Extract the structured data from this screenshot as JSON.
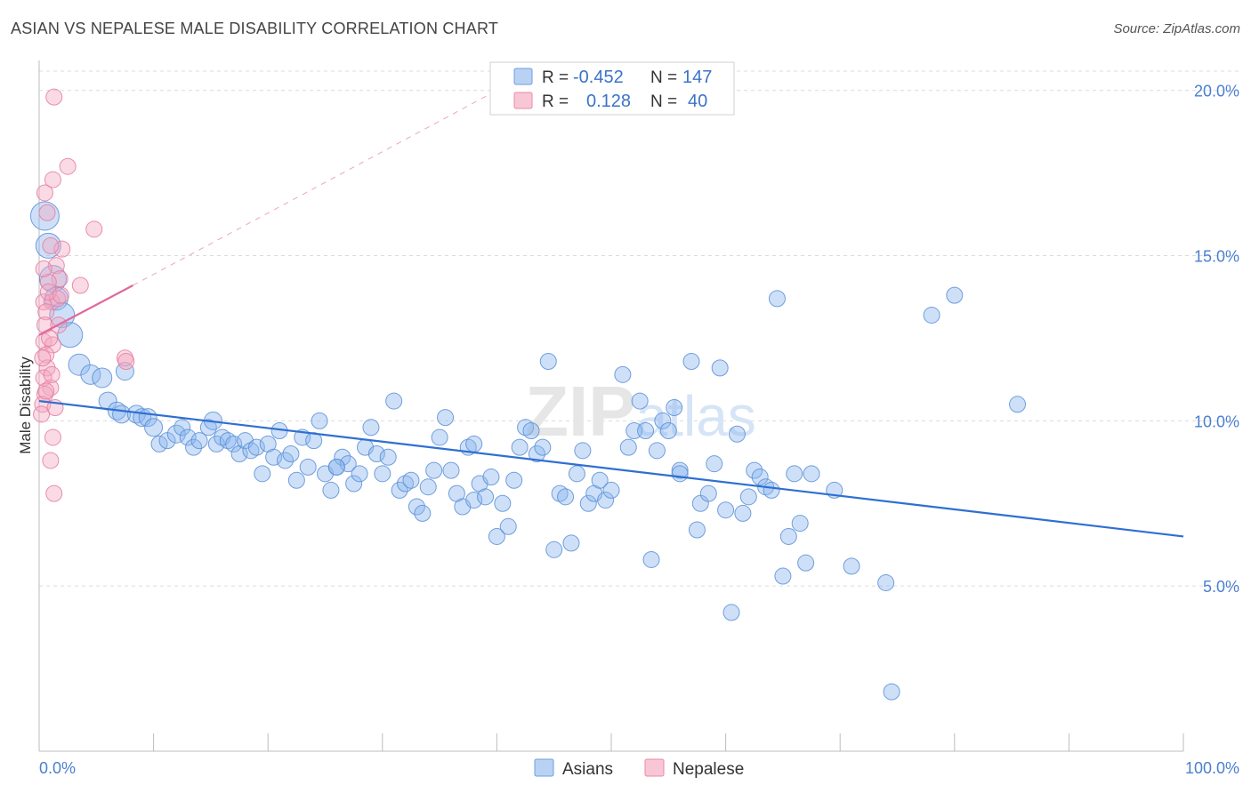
{
  "chart_data": {
    "type": "scatter",
    "title": "ASIAN VS NEPALESE MALE DISABILITY CORRELATION CHART",
    "source": "Source: ZipAtlas.com",
    "watermark": "ZIPatlas",
    "xlabel": "",
    "ylabel": "Male Disability",
    "xlim": [
      0,
      100
    ],
    "ylim": [
      0,
      20.8
    ],
    "x_tick_labels": [
      {
        "value": 0,
        "label": "0.0%"
      },
      {
        "value": 100,
        "label": "100.0%"
      }
    ],
    "y_tick_labels": [
      {
        "value": 5,
        "label": "5.0%"
      },
      {
        "value": 10,
        "label": "10.0%"
      },
      {
        "value": 15,
        "label": "15.0%"
      },
      {
        "value": 20,
        "label": "20.0%"
      }
    ],
    "legend_box": [
      {
        "series": "Asians",
        "r_label": "R =",
        "r_value": "-0.452",
        "n_label": "N =",
        "n_value": "147"
      },
      {
        "series": "Nepalese",
        "r_label": "R =",
        "r_value": "0.128",
        "n_label": "N =",
        "n_value": "40"
      }
    ],
    "series": [
      {
        "name": "Asians",
        "color": "#8ab4ee",
        "stroke": "#5b8fd6",
        "trend_color": "#2f6fd1",
        "trend": {
          "x0": 0,
          "y0": 10.6,
          "x1": 100,
          "y1": 6.5
        },
        "points": [
          [
            0.5,
            16.2,
            16
          ],
          [
            0.8,
            15.3,
            14
          ],
          [
            1.2,
            14.3,
            15
          ],
          [
            1.5,
            13.7,
            13
          ],
          [
            2.0,
            13.2,
            14
          ],
          [
            2.7,
            12.6,
            14
          ],
          [
            3.5,
            11.7,
            12
          ],
          [
            4.5,
            11.4,
            11
          ],
          [
            5.5,
            11.3,
            11
          ],
          [
            7.5,
            11.5,
            10
          ],
          [
            6.0,
            10.6,
            10
          ],
          [
            6.8,
            10.3,
            10
          ],
          [
            7.2,
            10.2,
            10
          ],
          [
            8.5,
            10.2,
            10
          ],
          [
            9.0,
            10.1,
            10
          ],
          [
            9.5,
            10.1,
            10
          ],
          [
            10.0,
            9.8,
            10
          ],
          [
            10.5,
            9.3,
            9
          ],
          [
            11.2,
            9.4,
            9
          ],
          [
            12.0,
            9.6,
            10
          ],
          [
            12.5,
            9.8,
            9
          ],
          [
            13.0,
            9.5,
            9
          ],
          [
            13.5,
            9.2,
            9
          ],
          [
            14.0,
            9.4,
            9
          ],
          [
            14.8,
            9.8,
            9
          ],
          [
            15.2,
            10.0,
            10
          ],
          [
            15.5,
            9.3,
            9
          ],
          [
            16.0,
            9.5,
            9
          ],
          [
            16.5,
            9.4,
            9
          ],
          [
            17.0,
            9.3,
            9
          ],
          [
            17.5,
            9.0,
            9
          ],
          [
            18.0,
            9.4,
            9
          ],
          [
            18.5,
            9.1,
            9
          ],
          [
            19.0,
            9.2,
            9
          ],
          [
            19.5,
            8.4,
            9
          ],
          [
            20.0,
            9.3,
            9
          ],
          [
            20.5,
            8.9,
            9
          ],
          [
            21.0,
            9.7,
            9
          ],
          [
            21.5,
            8.8,
            9
          ],
          [
            22.0,
            9.0,
            9
          ],
          [
            22.5,
            8.2,
            9
          ],
          [
            23.0,
            9.5,
            9
          ],
          [
            23.5,
            8.6,
            9
          ],
          [
            24.0,
            9.4,
            9
          ],
          [
            24.5,
            10.0,
            9
          ],
          [
            25.0,
            8.4,
            9
          ],
          [
            25.5,
            7.9,
            9
          ],
          [
            26.0,
            8.6,
            9
          ],
          [
            26.5,
            8.9,
            9
          ],
          [
            27.0,
            8.7,
            9
          ],
          [
            27.5,
            8.1,
            9
          ],
          [
            28.0,
            8.4,
            9
          ],
          [
            28.5,
            9.2,
            9
          ],
          [
            29.0,
            9.8,
            9
          ],
          [
            29.5,
            9.0,
            9
          ],
          [
            30.0,
            8.4,
            9
          ],
          [
            30.5,
            8.9,
            9
          ],
          [
            31.0,
            10.6,
            9
          ],
          [
            31.5,
            7.9,
            9
          ],
          [
            32.0,
            8.1,
            9
          ],
          [
            32.5,
            8.2,
            9
          ],
          [
            33.0,
            7.4,
            9
          ],
          [
            33.5,
            7.2,
            9
          ],
          [
            34.0,
            8.0,
            9
          ],
          [
            34.5,
            8.5,
            9
          ],
          [
            35.0,
            9.5,
            9
          ],
          [
            35.5,
            10.1,
            9
          ],
          [
            36.0,
            8.5,
            9
          ],
          [
            36.5,
            7.8,
            9
          ],
          [
            37.0,
            7.4,
            9
          ],
          [
            37.5,
            9.2,
            9
          ],
          [
            38.0,
            7.6,
            9
          ],
          [
            38.5,
            8.1,
            9
          ],
          [
            39.0,
            7.7,
            9
          ],
          [
            39.5,
            8.3,
            9
          ],
          [
            40.0,
            6.5,
            9
          ],
          [
            40.5,
            7.5,
            9
          ],
          [
            41.0,
            6.8,
            9
          ],
          [
            41.5,
            8.2,
            9
          ],
          [
            42.0,
            9.2,
            9
          ],
          [
            42.5,
            9.8,
            9
          ],
          [
            43.0,
            9.7,
            9
          ],
          [
            43.5,
            9.0,
            9
          ],
          [
            44.0,
            9.2,
            9
          ],
          [
            44.5,
            11.8,
            9
          ],
          [
            45.0,
            6.1,
            9
          ],
          [
            45.5,
            7.8,
            9
          ],
          [
            46.0,
            7.7,
            9
          ],
          [
            46.5,
            6.3,
            9
          ],
          [
            47.0,
            8.4,
            9
          ],
          [
            47.5,
            9.1,
            9
          ],
          [
            48.0,
            7.5,
            9
          ],
          [
            48.5,
            7.8,
            9
          ],
          [
            49.0,
            8.2,
            9
          ],
          [
            49.5,
            7.6,
            9
          ],
          [
            50.0,
            7.9,
            9
          ],
          [
            51.0,
            11.4,
            9
          ],
          [
            51.5,
            9.2,
            9
          ],
          [
            52.0,
            9.7,
            9
          ],
          [
            52.5,
            10.6,
            9
          ],
          [
            53.0,
            9.7,
            9
          ],
          [
            53.5,
            5.8,
            9
          ],
          [
            54.0,
            9.1,
            9
          ],
          [
            54.5,
            10.0,
            9
          ],
          [
            55.0,
            9.7,
            9
          ],
          [
            55.5,
            10.4,
            9
          ],
          [
            56.0,
            8.5,
            9
          ],
          [
            57.0,
            11.8,
            9
          ],
          [
            57.5,
            6.7,
            9
          ],
          [
            57.8,
            7.5,
            9
          ],
          [
            58.5,
            7.8,
            9
          ],
          [
            59.0,
            8.7,
            9
          ],
          [
            59.5,
            11.6,
            9
          ],
          [
            60.0,
            7.3,
            9
          ],
          [
            60.5,
            4.2,
            9
          ],
          [
            61.0,
            9.6,
            9
          ],
          [
            61.5,
            7.2,
            9
          ],
          [
            62.0,
            7.7,
            9
          ],
          [
            62.5,
            8.5,
            9
          ],
          [
            63.0,
            8.3,
            9
          ],
          [
            63.5,
            8.0,
            9
          ],
          [
            64.0,
            7.9,
            9
          ],
          [
            64.5,
            13.7,
            9
          ],
          [
            65.0,
            5.3,
            9
          ],
          [
            65.5,
            6.5,
            9
          ],
          [
            66.0,
            8.4,
            9
          ],
          [
            66.5,
            6.9,
            9
          ],
          [
            67.0,
            5.7,
            9
          ],
          [
            67.5,
            8.4,
            9
          ],
          [
            69.5,
            7.9,
            9
          ],
          [
            71.0,
            5.6,
            9
          ],
          [
            74.0,
            5.1,
            9
          ],
          [
            74.5,
            1.8,
            9
          ],
          [
            78.0,
            13.2,
            9
          ],
          [
            80.0,
            13.8,
            9
          ],
          [
            85.5,
            10.5,
            9
          ],
          [
            56.0,
            8.4,
            9
          ],
          [
            38.0,
            9.3,
            9
          ],
          [
            26.0,
            8.6,
            9
          ]
        ]
      },
      {
        "name": "Nepalese",
        "color": "#f4a8c0",
        "stroke": "#e47d9e",
        "trend_color": "#e0689a",
        "trend": {
          "x0": 0,
          "y0": 12.6,
          "x1": 8.2,
          "y1": 14.1
        },
        "trend_extension": {
          "x0": 8.2,
          "y0": 14.1,
          "x1": 40,
          "y1": 20.0
        },
        "points": [
          [
            1.3,
            19.8,
            9
          ],
          [
            2.5,
            17.7,
            9
          ],
          [
            1.2,
            17.3,
            9
          ],
          [
            0.5,
            16.9,
            9
          ],
          [
            0.7,
            16.3,
            9
          ],
          [
            4.8,
            15.8,
            9
          ],
          [
            2.0,
            15.2,
            9
          ],
          [
            1.0,
            15.3,
            9
          ],
          [
            1.5,
            14.7,
            9
          ],
          [
            1.8,
            14.3,
            9
          ],
          [
            0.8,
            14.2,
            9
          ],
          [
            3.6,
            14.1,
            9
          ],
          [
            0.4,
            13.6,
            9
          ],
          [
            1.1,
            13.6,
            9
          ],
          [
            1.6,
            13.7,
            9
          ],
          [
            0.6,
            13.3,
            9
          ],
          [
            0.5,
            12.9,
            9
          ],
          [
            0.4,
            12.4,
            9
          ],
          [
            1.2,
            12.3,
            9
          ],
          [
            0.6,
            12.0,
            9
          ],
          [
            7.5,
            11.9,
            9
          ],
          [
            7.6,
            11.8,
            9
          ],
          [
            0.7,
            11.6,
            9
          ],
          [
            0.4,
            11.3,
            9
          ],
          [
            1.0,
            11.0,
            9
          ],
          [
            0.5,
            10.8,
            9
          ],
          [
            0.3,
            10.5,
            9
          ],
          [
            1.4,
            10.4,
            9
          ],
          [
            0.2,
            10.2,
            9
          ],
          [
            1.2,
            9.5,
            9
          ],
          [
            1.0,
            8.8,
            9
          ],
          [
            1.3,
            7.8,
            9
          ],
          [
            0.8,
            13.9,
            9
          ],
          [
            1.9,
            13.8,
            9
          ],
          [
            0.3,
            11.9,
            9
          ],
          [
            0.9,
            12.5,
            9
          ],
          [
            0.6,
            10.9,
            9
          ],
          [
            1.1,
            11.4,
            9
          ],
          [
            0.4,
            14.6,
            9
          ],
          [
            1.7,
            12.9,
            9
          ]
        ]
      }
    ],
    "bottom_legend": [
      "Asians",
      "Nepalese"
    ]
  }
}
